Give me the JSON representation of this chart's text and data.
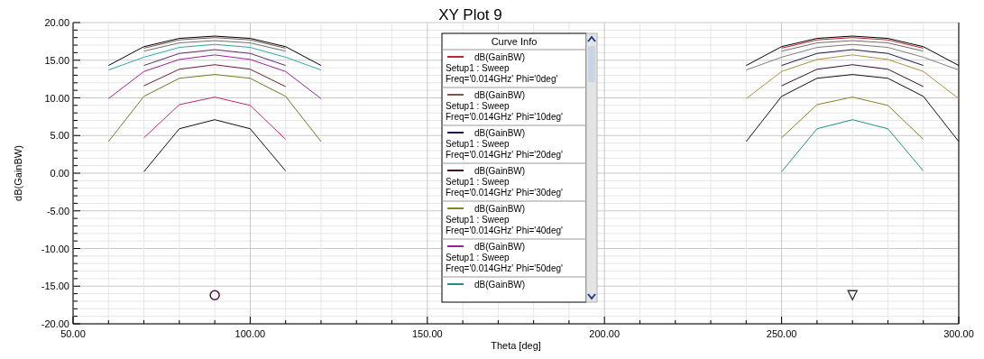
{
  "chart_data": {
    "type": "line",
    "title": "XY Plot 9",
    "xlabel": "Theta [deg]",
    "ylabel": "dB(GainBW)",
    "legend_title": "Curve Info",
    "legend": "top",
    "grid": true,
    "marker": "none",
    "line_style": "solid",
    "xlim": [
      50,
      300
    ],
    "ylim": [
      -20,
      20
    ],
    "xticks": [
      {
        "value": 50,
        "label": "50.00"
      },
      {
        "value": 60,
        "label": null
      },
      {
        "value": 70,
        "label": null
      },
      {
        "value": 80,
        "label": null
      },
      {
        "value": 90,
        "label": null
      },
      {
        "value": 100,
        "label": "100.00"
      },
      {
        "value": 110,
        "label": null
      },
      {
        "value": 120,
        "label": null
      },
      {
        "value": 130,
        "label": null
      },
      {
        "value": 140,
        "label": null
      },
      {
        "value": 150,
        "label": "150.00"
      },
      {
        "value": 160,
        "label": null
      },
      {
        "value": 170,
        "label": null
      },
      {
        "value": 180,
        "label": null
      },
      {
        "value": 190,
        "label": null
      },
      {
        "value": 200,
        "label": "200.00"
      },
      {
        "value": 210,
        "label": null
      },
      {
        "value": 220,
        "label": null
      },
      {
        "value": 230,
        "label": null
      },
      {
        "value": 240,
        "label": null
      },
      {
        "value": 250,
        "label": "250.00"
      },
      {
        "value": 260,
        "label": null
      },
      {
        "value": 270,
        "label": null
      },
      {
        "value": 280,
        "label": null
      },
      {
        "value": 290,
        "label": null
      },
      {
        "value": 300,
        "label": "300.00"
      }
    ],
    "yticks": [
      {
        "value": -20,
        "label": "-20.00"
      },
      {
        "value": -19,
        "label": null
      },
      {
        "value": -18,
        "label": null
      },
      {
        "value": -17,
        "label": null
      },
      {
        "value": -16,
        "label": null
      },
      {
        "value": -15,
        "label": "-15.00"
      },
      {
        "value": -14,
        "label": null
      },
      {
        "value": -13,
        "label": null
      },
      {
        "value": -12,
        "label": null
      },
      {
        "value": -11,
        "label": null
      },
      {
        "value": -10,
        "label": "-10.00"
      },
      {
        "value": -9,
        "label": null
      },
      {
        "value": -8,
        "label": null
      },
      {
        "value": -7,
        "label": null
      },
      {
        "value": -6,
        "label": null
      },
      {
        "value": -5,
        "label": "-5.00"
      },
      {
        "value": -4,
        "label": null
      },
      {
        "value": -3,
        "label": null
      },
      {
        "value": -2,
        "label": null
      },
      {
        "value": -1,
        "label": null
      },
      {
        "value": 0,
        "label": "0.00"
      },
      {
        "value": 1,
        "label": null
      },
      {
        "value": 2,
        "label": null
      },
      {
        "value": 3,
        "label": null
      },
      {
        "value": 4,
        "label": null
      },
      {
        "value": 5,
        "label": "5.00"
      },
      {
        "value": 6,
        "label": null
      },
      {
        "value": 7,
        "label": null
      },
      {
        "value": 8,
        "label": null
      },
      {
        "value": 9,
        "label": null
      },
      {
        "value": 10,
        "label": "10.00"
      },
      {
        "value": 11,
        "label": null
      },
      {
        "value": 12,
        "label": null
      },
      {
        "value": 13,
        "label": null
      },
      {
        "value": 14,
        "label": null
      },
      {
        "value": 15,
        "label": "15.00"
      },
      {
        "value": 16,
        "label": null
      },
      {
        "value": 17,
        "label": null
      },
      {
        "value": 18,
        "label": null
      },
      {
        "value": 19,
        "label": null
      },
      {
        "value": 20,
        "label": "20.00"
      }
    ],
    "series": [
      {
        "name": "dB(GainBW)\nSetup1 : Sweep\nFreq='0.014GHz' Phi='0deg'",
        "color": "#c0282d",
        "x": [
          250,
          260,
          270,
          280,
          290
        ],
        "values": [
          16.6,
          17.7,
          18.0,
          17.7,
          16.6
        ]
      },
      {
        "name": "dB(GainBW)\nSetup1 : Sweep\nFreq='0.014GHz' Phi='10deg'",
        "color": "#7a5a50",
        "x": [
          70,
          80,
          90,
          100,
          110
        ],
        "values": [
          16.6,
          17.7,
          18.0,
          17.7,
          16.6
        ]
      },
      {
        "name": "dB(GainBW)\nSetup1 : Sweep\nFreq='0.014GHz' Phi='20deg'",
        "color": "#1a1a4a",
        "x": [
          250,
          260,
          270,
          280,
          290
        ],
        "values": [
          14.3,
          15.9,
          16.4,
          15.9,
          14.3
        ]
      },
      {
        "name": "dB(GainBW)\nSetup1 : Sweep\nFreq='0.014GHz' Phi='30deg'",
        "color": "#3a1030",
        "x": [
          250,
          260,
          270,
          280,
          290
        ],
        "values": [
          11.6,
          13.8,
          14.4,
          13.8,
          11.5
        ]
      },
      {
        "name": "dB(GainBW)\nSetup1 : Sweep\nFreq='0.014GHz' Phi='40deg'",
        "color": "#8a8020",
        "x": [
          250,
          260,
          270,
          280,
          290
        ],
        "values": [
          4.7,
          9.1,
          10.1,
          9.0,
          4.5
        ]
      },
      {
        "name": "dB(GainBW)\nSetup1 : Sweep\nFreq='0.014GHz' Phi='50deg'",
        "color": "#a0209a",
        "x": [
          60,
          70,
          80,
          90,
          100,
          110,
          120
        ],
        "values": [
          9.9,
          13.5,
          15.1,
          15.7,
          15.1,
          13.5,
          9.9
        ]
      },
      {
        "name": "dB(GainBW)",
        "color": "#20908a",
        "x": [
          250,
          260,
          270,
          280,
          290
        ],
        "values": [
          0.2,
          5.9,
          7.1,
          5.9,
          0.3
        ]
      },
      {
        "color": "#000000",
        "x": [
          60,
          70,
          80,
          90,
          100,
          110,
          120
        ],
        "values": [
          14.3,
          16.8,
          17.9,
          18.2,
          17.9,
          16.8,
          14.3
        ]
      },
      {
        "color": "#707070",
        "x": [
          70,
          80,
          90,
          100,
          110
        ],
        "values": [
          16.2,
          17.3,
          17.6,
          17.3,
          16.2
        ]
      },
      {
        "color": "#30a8b0",
        "x": [
          60,
          70,
          80,
          90,
          100,
          110,
          120
        ],
        "values": [
          13.7,
          15.4,
          16.7,
          17.1,
          16.7,
          15.4,
          13.7
        ]
      },
      {
        "color": "#5a2a70",
        "x": [
          70,
          80,
          90,
          100,
          110
        ],
        "values": [
          14.3,
          15.9,
          16.4,
          15.9,
          14.3
        ]
      },
      {
        "color": "#702030",
        "x": [
          70,
          80,
          90,
          100,
          110
        ],
        "values": [
          11.6,
          13.8,
          14.4,
          13.8,
          11.5
        ]
      },
      {
        "color": "#707a20",
        "x": [
          60,
          70,
          80,
          90,
          100,
          110,
          120
        ],
        "values": [
          4.2,
          10.2,
          12.6,
          13.1,
          12.6,
          10.2,
          4.2
        ]
      },
      {
        "color": "#c02870",
        "x": [
          70,
          80,
          90,
          100,
          110
        ],
        "values": [
          4.7,
          9.1,
          10.1,
          9.0,
          4.5
        ]
      },
      {
        "color": "#101010",
        "x": [
          70,
          80,
          90,
          100,
          110
        ],
        "values": [
          0.2,
          5.9,
          7.1,
          5.9,
          0.3
        ]
      },
      {
        "color": "#000000",
        "x": [
          240,
          250,
          260,
          270,
          280,
          290,
          300
        ],
        "values": [
          14.3,
          16.8,
          17.9,
          18.2,
          17.9,
          16.8,
          14.3
        ]
      },
      {
        "color": "#806868",
        "x": [
          250,
          260,
          270,
          280,
          290
        ],
        "values": [
          16.2,
          17.3,
          17.6,
          17.3,
          16.2
        ]
      },
      {
        "color": "#808080",
        "x": [
          240,
          250,
          260,
          270,
          280,
          290,
          300
        ],
        "values": [
          13.7,
          15.4,
          16.7,
          17.1,
          16.7,
          15.4,
          13.7
        ]
      },
      {
        "color": "#b09040",
        "x": [
          240,
          250,
          260,
          270,
          280,
          290,
          300
        ],
        "values": [
          9.9,
          13.5,
          15.1,
          15.7,
          15.1,
          13.5,
          9.9
        ]
      },
      {
        "color": "#101010",
        "x": [
          240,
          250,
          260,
          270,
          280,
          290,
          300
        ],
        "values": [
          4.2,
          10.2,
          12.6,
          13.1,
          12.6,
          10.2,
          4.2
        ]
      },
      {
        "type": "scatter",
        "marker": "circle",
        "color": "#501040",
        "x": [
          90
        ],
        "values": [
          -16.2
        ]
      },
      {
        "type": "scatter",
        "marker": "triangle",
        "color": "#303030",
        "x": [
          270
        ],
        "values": [
          -16.2
        ]
      }
    ]
  }
}
